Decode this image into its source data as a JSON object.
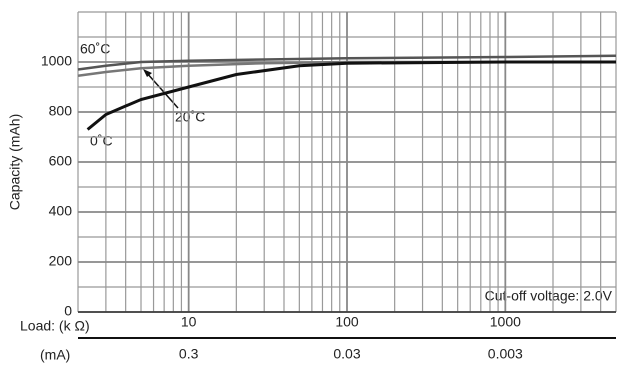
{
  "chart_data": {
    "type": "line",
    "y_label": "Capacity (mAh)",
    "x_label": "Load: (k Ω)",
    "x2_label": "(mA)",
    "annotation": "Cut-off voltage: 2.0V",
    "log_x": true,
    "xlim": [
      2,
      5000
    ],
    "xticks": [
      10,
      100,
      1000
    ],
    "xminor_ticks": [
      2,
      3,
      4,
      5,
      6,
      7,
      8,
      9,
      20,
      30,
      40,
      50,
      60,
      70,
      80,
      90,
      200,
      300,
      400,
      500,
      600,
      700,
      800,
      900,
      2000,
      3000,
      4000,
      5000
    ],
    "x2lim": [
      1.5,
      0.0006
    ],
    "x2ticks": [
      0.3,
      0.03,
      0.003
    ],
    "ylim": [
      0,
      1200
    ],
    "yticks": [
      0,
      200,
      400,
      600,
      800,
      1000
    ],
    "yminor_ticks": [
      100,
      300,
      500,
      700,
      900,
      1100,
      1200
    ],
    "grid": true,
    "series": [
      {
        "name": "60˚C",
        "color": "#555555",
        "x": [
          2,
          3,
          5,
          10,
          30,
          100,
          1000,
          5000
        ],
        "y": [
          970,
          985,
          1000,
          1005,
          1010,
          1015,
          1020,
          1025
        ]
      },
      {
        "name": "20˚C",
        "color": "#777777",
        "x": [
          2,
          3,
          5,
          10,
          30,
          100,
          1000,
          5000
        ],
        "y": [
          945,
          960,
          975,
          985,
          995,
          1000,
          1000,
          1000
        ]
      },
      {
        "name": "0˚C",
        "color": "#111111",
        "x": [
          2.3,
          3,
          5,
          10,
          20,
          50,
          100,
          1000,
          5000
        ],
        "y": [
          730,
          790,
          850,
          900,
          950,
          985,
          995,
          1000,
          1000
        ]
      }
    ]
  }
}
